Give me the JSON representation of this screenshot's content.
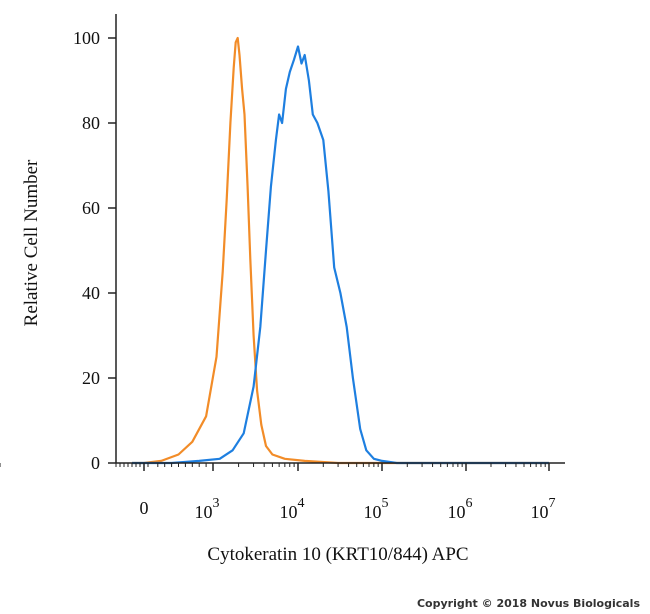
{
  "chart_data": {
    "type": "area",
    "xlabel": "Cytokeratin 10 (KRT10/844) APC",
    "ylabel": "Relative Cell Number",
    "x_scale": "biexponential",
    "ylim": [
      0,
      100
    ],
    "x_ticks": [
      {
        "value": 0,
        "label": "0"
      },
      {
        "value": 1000,
        "base": "10",
        "exp": "3"
      },
      {
        "value": 10000,
        "base": "10",
        "exp": "4"
      },
      {
        "value": 100000,
        "base": "10",
        "exp": "5"
      },
      {
        "value": 1000000,
        "base": "10",
        "exp": "6"
      },
      {
        "value": 10000000,
        "base": "10",
        "exp": "7"
      }
    ],
    "y_ticks": [
      0,
      20,
      40,
      60,
      80,
      100
    ],
    "grid": false,
    "legend": "none",
    "series": [
      {
        "color": "#f28c28",
        "points": [
          [
            -300,
            0
          ],
          [
            0,
            0
          ],
          [
            250,
            0.5
          ],
          [
            500,
            2
          ],
          [
            700,
            5
          ],
          [
            900,
            11
          ],
          [
            1100,
            25
          ],
          [
            1300,
            45
          ],
          [
            1450,
            62
          ],
          [
            1600,
            80
          ],
          [
            1750,
            93
          ],
          [
            1850,
            99
          ],
          [
            1950,
            100
          ],
          [
            2050,
            96
          ],
          [
            2200,
            88
          ],
          [
            2350,
            82
          ],
          [
            2550,
            65
          ],
          [
            2750,
            48
          ],
          [
            3000,
            30
          ],
          [
            3300,
            17
          ],
          [
            3700,
            9
          ],
          [
            4200,
            4
          ],
          [
            5000,
            2
          ],
          [
            7000,
            1
          ],
          [
            12000,
            0.5
          ],
          [
            30000,
            0
          ],
          [
            10000000,
            0
          ]
        ]
      },
      {
        "color": "#1e7fe0",
        "points": [
          [
            -300,
            0
          ],
          [
            0,
            0
          ],
          [
            400,
            0
          ],
          [
            800,
            0.5
          ],
          [
            1200,
            1
          ],
          [
            1700,
            3
          ],
          [
            2300,
            7
          ],
          [
            3000,
            18
          ],
          [
            3600,
            32
          ],
          [
            4200,
            50
          ],
          [
            4800,
            65
          ],
          [
            5500,
            76
          ],
          [
            6000,
            82
          ],
          [
            6500,
            80
          ],
          [
            7200,
            88
          ],
          [
            8000,
            92
          ],
          [
            9000,
            95
          ],
          [
            10000,
            98
          ],
          [
            11000,
            94
          ],
          [
            12000,
            96
          ],
          [
            13500,
            90
          ],
          [
            15000,
            82
          ],
          [
            17000,
            80
          ],
          [
            20000,
            76
          ],
          [
            23000,
            64
          ],
          [
            27000,
            46
          ],
          [
            32000,
            40
          ],
          [
            38000,
            32
          ],
          [
            45000,
            20
          ],
          [
            55000,
            8
          ],
          [
            65000,
            3
          ],
          [
            80000,
            1
          ],
          [
            100000,
            0.5
          ],
          [
            150000,
            0
          ],
          [
            10000000,
            0
          ]
        ]
      }
    ]
  },
  "copyright": "Copyright © 2018 Novus Biologicals"
}
